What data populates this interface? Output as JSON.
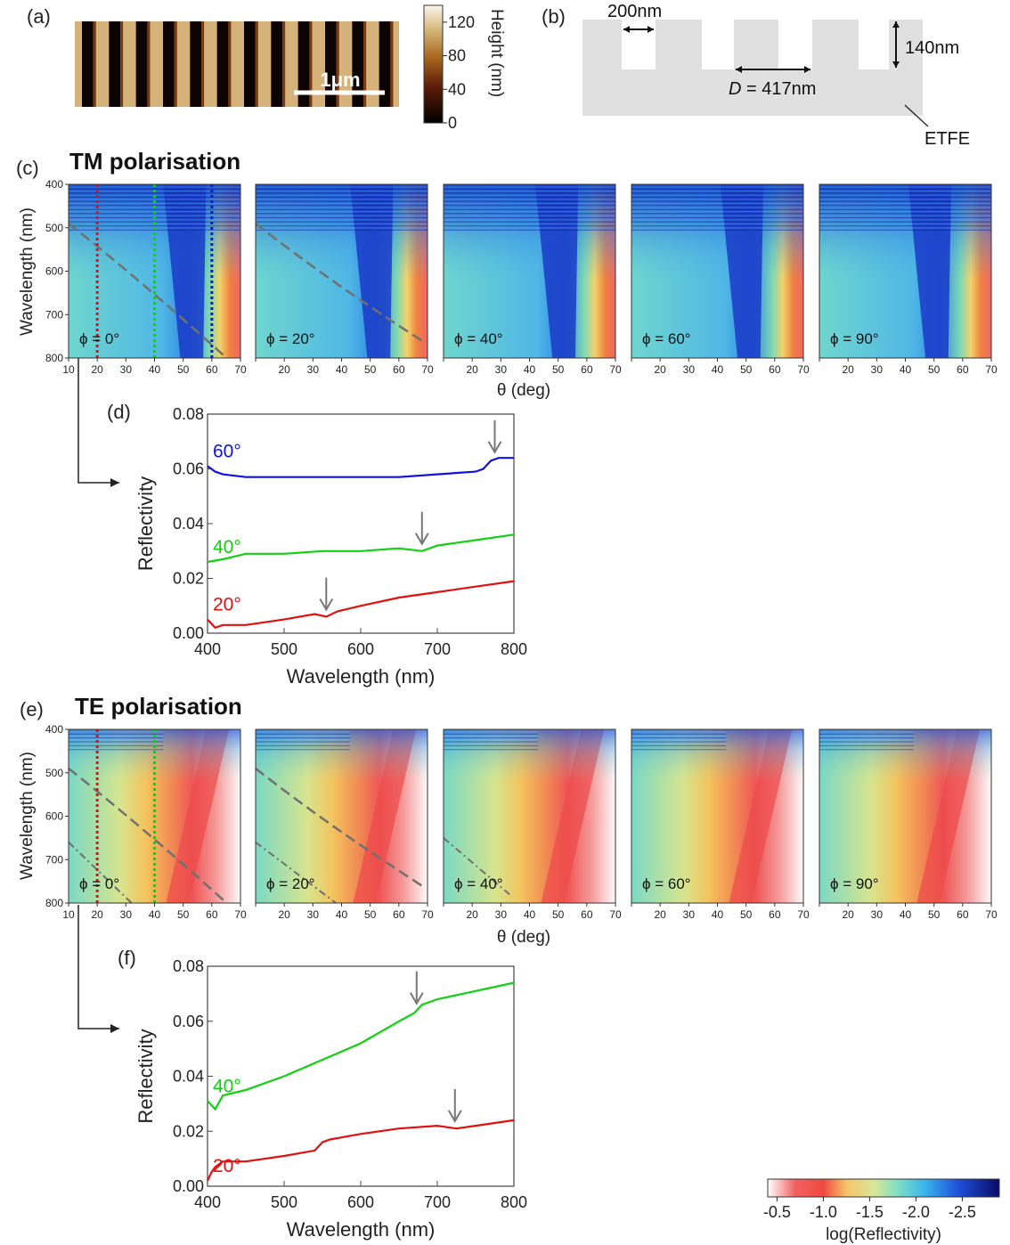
{
  "panels": {
    "a": {
      "label": "(a)",
      "scalebar": "1μm",
      "colorbar_label": "Height (nm)",
      "colorbar_ticks": [
        "120",
        "80",
        "40",
        "0"
      ],
      "colorbar_values": [
        120,
        80,
        40,
        0
      ],
      "colorbar_range": [
        0,
        140
      ]
    },
    "b": {
      "label": "(b)",
      "width_label": "200nm",
      "height_label": "140nm",
      "period_prefix": "D",
      "period_suffix": " = 417nm",
      "substrate_label": "ETFE"
    },
    "c": {
      "label": "(c)",
      "title": "TM polarisation",
      "phis": [
        "ϕ = 0°",
        "ϕ = 20°",
        "ϕ = 40°",
        "ϕ = 60°",
        "ϕ = 90°"
      ],
      "ylabel": "Wavelength (nm)",
      "xlabel": "θ (deg)",
      "yticks": [
        "400",
        "500",
        "600",
        "700",
        "800"
      ],
      "xticks": [
        "10",
        "20",
        "30",
        "40",
        "50",
        "60",
        "70"
      ],
      "dips": [
        52,
        52,
        51,
        50,
        50
      ],
      "markers": [
        {
          "theta": 20,
          "color": "#e01010"
        },
        {
          "theta": 40,
          "color": "#10d010"
        },
        {
          "theta": 60,
          "color": "#1010e0"
        }
      ]
    },
    "e": {
      "label": "(e)",
      "title": "TE polarisation",
      "phis": [
        "ϕ = 0°",
        "ϕ = 20°",
        "ϕ = 40°",
        "ϕ = 60°",
        "ϕ = 90°"
      ],
      "ylabel": "Wavelength (nm)",
      "xlabel": "θ (deg)",
      "yticks": [
        "400",
        "500",
        "600",
        "700",
        "800"
      ],
      "xticks": [
        "10",
        "20",
        "30",
        "40",
        "50",
        "60",
        "70"
      ],
      "markers": [
        {
          "theta": 20,
          "color": "#e01010"
        },
        {
          "theta": 40,
          "color": "#10d010"
        }
      ]
    },
    "d": {
      "label": "(d)"
    },
    "f": {
      "label": "(f)"
    }
  },
  "colorbar_main": {
    "label": "log(Reflectivity)",
    "ticks": [
      "-0.5",
      "-1.0",
      "-1.5",
      "-2.0",
      "-2.5"
    ],
    "tick_values": [
      -0.5,
      -1.0,
      -1.5,
      -2.0,
      -2.5
    ],
    "range": [
      -0.4,
      -2.9
    ]
  },
  "chart_data": [
    {
      "type": "line",
      "panel": "d",
      "title": "",
      "xlabel": "Wavelength (nm)",
      "ylabel": "Reflectivity",
      "xlim": [
        400,
        800
      ],
      "ylim": [
        0.0,
        0.08
      ],
      "xticks": [
        "400",
        "500",
        "600",
        "700",
        "800"
      ],
      "yticks": [
        "0.00",
        "0.02",
        "0.04",
        "0.06",
        "0.08"
      ],
      "series": [
        {
          "name": "60°",
          "color": "#1010e0",
          "x": [
            400,
            410,
            420,
            450,
            500,
            550,
            600,
            650,
            700,
            750,
            760,
            770,
            780,
            790,
            800
          ],
          "y": [
            0.061,
            0.059,
            0.058,
            0.057,
            0.057,
            0.057,
            0.057,
            0.057,
            0.058,
            0.059,
            0.06,
            0.063,
            0.064,
            0.064,
            0.064
          ],
          "arrow": 775
        },
        {
          "name": "40°",
          "color": "#10d010",
          "x": [
            400,
            420,
            450,
            500,
            550,
            600,
            650,
            680,
            700,
            750,
            800
          ],
          "y": [
            0.026,
            0.027,
            0.029,
            0.029,
            0.03,
            0.03,
            0.031,
            0.03,
            0.032,
            0.034,
            0.036
          ],
          "arrow": 680
        },
        {
          "name": "20°",
          "color": "#e01010",
          "x": [
            400,
            410,
            420,
            450,
            500,
            540,
            555,
            570,
            600,
            650,
            700,
            750,
            800
          ],
          "y": [
            0.005,
            0.002,
            0.003,
            0.003,
            0.005,
            0.007,
            0.006,
            0.008,
            0.01,
            0.013,
            0.015,
            0.017,
            0.019
          ],
          "arrow": 555
        }
      ]
    },
    {
      "type": "line",
      "panel": "f",
      "title": "",
      "xlabel": "Wavelength (nm)",
      "ylabel": "Reflectivity",
      "xlim": [
        400,
        800
      ],
      "ylim": [
        0.0,
        0.08
      ],
      "xticks": [
        "400",
        "500",
        "600",
        "700",
        "800"
      ],
      "yticks": [
        "0.00",
        "0.02",
        "0.04",
        "0.06",
        "0.08"
      ],
      "series": [
        {
          "name": "40°",
          "color": "#10d010",
          "x": [
            400,
            410,
            420,
            450,
            500,
            550,
            600,
            650,
            670,
            680,
            700,
            750,
            800
          ],
          "y": [
            0.031,
            0.028,
            0.033,
            0.035,
            0.04,
            0.046,
            0.052,
            0.06,
            0.063,
            0.066,
            0.068,
            0.071,
            0.074
          ],
          "arrow": 673
        },
        {
          "name": "20°",
          "color": "#e01010",
          "x": [
            400,
            405,
            410,
            420,
            450,
            500,
            540,
            550,
            560,
            600,
            650,
            700,
            725,
            750,
            800
          ],
          "y": [
            0.002,
            0.005,
            0.007,
            0.009,
            0.009,
            0.011,
            0.013,
            0.016,
            0.017,
            0.019,
            0.021,
            0.022,
            0.021,
            0.022,
            0.024
          ],
          "arrow": 723
        }
      ]
    }
  ]
}
